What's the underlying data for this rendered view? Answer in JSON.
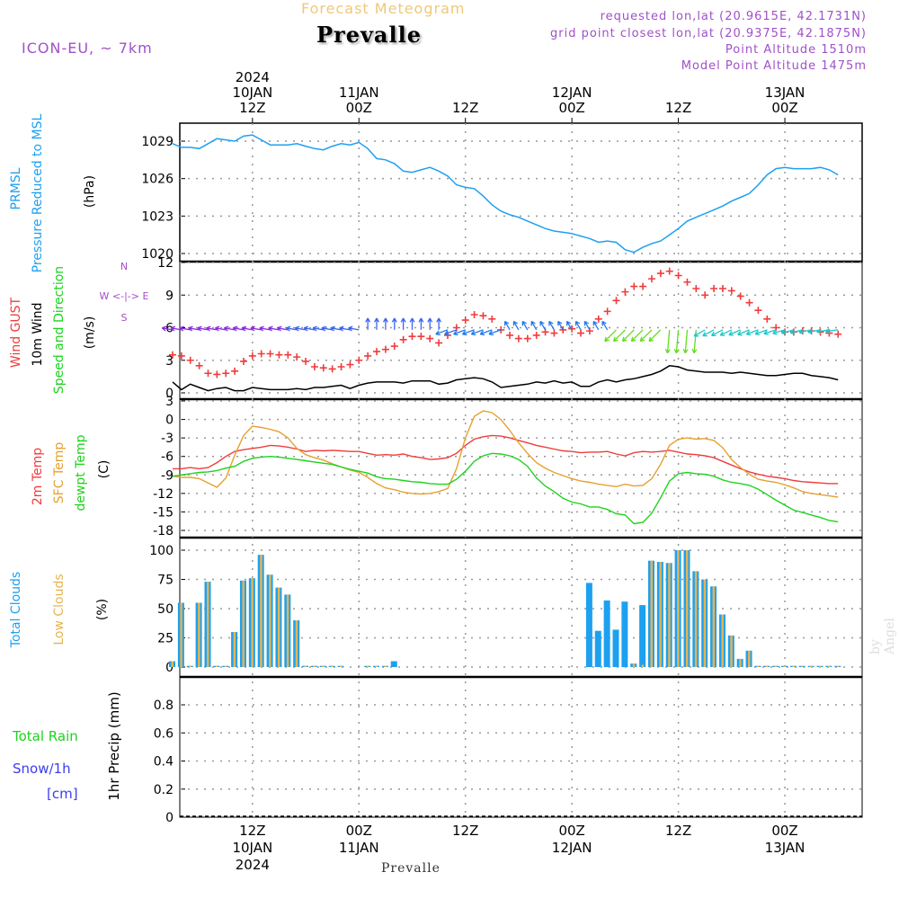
{
  "header": {
    "chart_kind": "Forecast Meteogram",
    "station": "Prevalle",
    "model": "ICON-EU, ~ 7km",
    "requested": "requested lon,lat (20.9615E, 42.1731N)",
    "grid_point": "grid point closest lon,lat (20.9375E, 42.1875N)",
    "point_alt": "Point Altitude 1510m",
    "model_alt": "Model Point Altitude 1475m",
    "credit": "by Angel",
    "footer": "Prevalle"
  },
  "colors": {
    "pressure": "#1ea0f0",
    "gust": "#f03c3c",
    "wind": "#000000",
    "t2m": "#f03c3c",
    "sfc": "#e6a030",
    "dewpt": "#1ed21e",
    "total_clouds": "#1ea0f0",
    "low_clouds": "#e6b450",
    "purple": "#a050c8",
    "snow": "#3c3cf0"
  },
  "chart_data": [
    {
      "type": "line",
      "panel": "pressure",
      "title": "PRMSL Pressure Reduced to MSL",
      "label1": "PRMSL",
      "label2": "Pressure Reduced to MSL",
      "ylabel": "(hPa)",
      "yticks": [
        "1020",
        "1023",
        "1026",
        "1029"
      ],
      "ylim": [
        1020,
        1030
      ],
      "x_hours": [
        0,
        1,
        2,
        3,
        4,
        5,
        6,
        7,
        8,
        9,
        10,
        11,
        12,
        13,
        14,
        15,
        16,
        17,
        18,
        19,
        20,
        21,
        22,
        23,
        24,
        25,
        26,
        27,
        28,
        29,
        30,
        31,
        32,
        33,
        34,
        35,
        36,
        37,
        38,
        39,
        40,
        41,
        42,
        43,
        44,
        45,
        46,
        47,
        48,
        49,
        50,
        51,
        52,
        53,
        54,
        55,
        56,
        57,
        58,
        59,
        60,
        61,
        62,
        63,
        64,
        65,
        66,
        67,
        68,
        69,
        70,
        71,
        72,
        73,
        74,
        75
      ],
      "values": [
        1028.8,
        1028.5,
        1028.5,
        1028.4,
        1028.8,
        1029.2,
        1029.1,
        1029.0,
        1029.4,
        1029.5,
        1029.1,
        1028.7,
        1028.7,
        1028.7,
        1028.8,
        1028.6,
        1028.4,
        1028.3,
        1028.6,
        1028.8,
        1028.7,
        1028.9,
        1028.4,
        1027.6,
        1027.5,
        1027.2,
        1026.6,
        1026.5,
        1026.7,
        1026.9,
        1026.6,
        1026.2,
        1025.5,
        1025.3,
        1025.2,
        1024.6,
        1023.9,
        1023.4,
        1023.1,
        1022.9,
        1022.6,
        1022.3,
        1022.0,
        1021.8,
        1021.7,
        1021.6,
        1021.4,
        1021.2,
        1020.9,
        1021.0,
        1020.9,
        1020.3,
        1020.1,
        1020.5,
        1020.8,
        1021.0,
        1021.5,
        1022.0,
        1022.6,
        1022.9,
        1023.2,
        1023.5,
        1023.8,
        1024.2,
        1024.5,
        1024.8,
        1025.5,
        1026.3,
        1026.8,
        1026.9,
        1026.8,
        1026.8,
        1026.8,
        1026.9,
        1026.7,
        1026.3
      ]
    },
    {
      "type": "line",
      "panel": "wind",
      "label_gust": "Wind GUST",
      "label_wind": "10m Wind",
      "label_dir": "Speed and Direction",
      "ylabel": "(m/s)",
      "compass": "W <-|-> E",
      "compass_n": "N",
      "compass_s": "S",
      "yticks": [
        "0",
        "3",
        "6",
        "9",
        "12"
      ],
      "ylim": [
        0,
        12
      ],
      "x_hours": [
        0,
        1,
        2,
        3,
        4,
        5,
        6,
        7,
        8,
        9,
        10,
        11,
        12,
        13,
        14,
        15,
        16,
        17,
        18,
        19,
        20,
        21,
        22,
        23,
        24,
        25,
        26,
        27,
        28,
        29,
        30,
        31,
        32,
        33,
        34,
        35,
        36,
        37,
        38,
        39,
        40,
        41,
        42,
        43,
        44,
        45,
        46,
        47,
        48,
        49,
        50,
        51,
        52,
        53,
        54,
        55,
        56,
        57,
        58,
        59,
        60,
        61,
        62,
        63,
        64,
        65,
        66,
        67,
        68,
        69,
        70,
        71,
        72,
        73,
        74,
        75
      ],
      "gust": [
        3.5,
        3.4,
        3.0,
        2.5,
        1.8,
        1.7,
        1.8,
        2.0,
        2.9,
        3.4,
        3.6,
        3.6,
        3.5,
        3.5,
        3.3,
        2.9,
        2.4,
        2.3,
        2.2,
        2.4,
        2.6,
        3.0,
        3.4,
        3.8,
        4.0,
        4.3,
        4.9,
        5.2,
        5.2,
        5.0,
        4.6,
        5.3,
        6.0,
        6.7,
        7.2,
        7.1,
        6.8,
        5.8,
        5.3,
        5.0,
        5.0,
        5.3,
        5.6,
        5.5,
        5.8,
        5.9,
        5.5,
        5.7,
        6.8,
        7.5,
        8.5,
        9.3,
        9.8,
        9.8,
        10.5,
        11.0,
        11.2,
        10.8,
        10.2,
        9.6,
        9.0,
        9.6,
        9.6,
        9.4,
        8.9,
        8.3,
        7.6,
        6.8,
        6.0,
        5.6,
        5.6,
        5.7,
        5.7,
        5.6,
        5.5,
        5.4
      ],
      "wind": [
        1.0,
        0.3,
        0.8,
        0.5,
        0.2,
        0.4,
        0.5,
        0.2,
        0.2,
        0.5,
        0.4,
        0.3,
        0.3,
        0.3,
        0.4,
        0.3,
        0.5,
        0.5,
        0.6,
        0.7,
        0.4,
        0.7,
        0.9,
        1.0,
        1.0,
        1.0,
        0.9,
        1.1,
        1.1,
        1.1,
        0.8,
        0.9,
        1.2,
        1.3,
        1.4,
        1.3,
        1.0,
        0.5,
        0.6,
        0.7,
        0.8,
        1.0,
        0.9,
        1.1,
        0.9,
        1.0,
        0.6,
        0.6,
        1.0,
        1.2,
        1.0,
        1.2,
        1.3,
        1.5,
        1.7,
        2.0,
        2.5,
        2.4,
        2.1,
        2.0,
        1.9,
        1.9,
        1.9,
        1.8,
        1.9,
        1.8,
        1.7,
        1.6,
        1.6,
        1.7,
        1.8,
        1.8,
        1.6,
        1.5,
        1.4,
        1.2
      ]
    },
    {
      "type": "line",
      "panel": "temperature",
      "label_t2m": "2m Temp",
      "label_sfc": "SFC Temp",
      "label_dew": "dewpt Temp",
      "ylabel": "(C)",
      "yticks": [
        "-18",
        "-15",
        "-12",
        "-9",
        "-6",
        "-3",
        "0",
        "3"
      ],
      "ylim": [
        -18,
        3
      ],
      "x_hours": [
        0,
        1,
        2,
        3,
        4,
        5,
        6,
        7,
        8,
        9,
        10,
        11,
        12,
        13,
        14,
        15,
        16,
        17,
        18,
        19,
        20,
        21,
        22,
        23,
        24,
        25,
        26,
        27,
        28,
        29,
        30,
        31,
        32,
        33,
        34,
        35,
        36,
        37,
        38,
        39,
        40,
        41,
        42,
        43,
        44,
        45,
        46,
        47,
        48,
        49,
        50,
        51,
        52,
        53,
        54,
        55,
        56,
        57,
        58,
        59,
        60,
        61,
        62,
        63,
        64,
        65,
        66,
        67,
        68,
        69,
        70,
        71,
        72,
        73,
        74,
        75
      ],
      "t2m": [
        -8.0,
        -8.0,
        -7.8,
        -8.0,
        -7.8,
        -7.0,
        -6.0,
        -5.2,
        -4.9,
        -4.7,
        -4.5,
        -4.2,
        -4.3,
        -4.5,
        -4.8,
        -5.2,
        -5.0,
        -5.1,
        -5.0,
        -5.1,
        -5.2,
        -5.2,
        -5.5,
        -5.8,
        -5.7,
        -5.8,
        -5.6,
        -6.0,
        -6.2,
        -6.5,
        -6.4,
        -6.2,
        -5.5,
        -4.2,
        -3.2,
        -2.8,
        -2.6,
        -2.7,
        -3.0,
        -3.4,
        -3.8,
        -4.2,
        -4.5,
        -4.8,
        -5.1,
        -5.2,
        -5.4,
        -5.3,
        -5.3,
        -5.2,
        -5.6,
        -5.9,
        -5.4,
        -5.2,
        -5.3,
        -5.2,
        -5.0,
        -5.3,
        -5.6,
        -5.7,
        -5.9,
        -6.2,
        -6.8,
        -7.4,
        -8.0,
        -8.5,
        -8.9,
        -9.2,
        -9.4,
        -9.6,
        -9.9,
        -10.1,
        -10.2,
        -10.3,
        -10.4,
        -10.4
      ],
      "sfc": [
        -9.2,
        -9.4,
        -9.4,
        -9.6,
        -10.3,
        -11.0,
        -9.5,
        -5.8,
        -2.6,
        -1.1,
        -1.3,
        -1.6,
        -2.0,
        -3.0,
        -4.7,
        -5.7,
        -6.2,
        -6.6,
        -7.2,
        -7.7,
        -8.2,
        -8.6,
        -9.4,
        -10.4,
        -11.1,
        -11.4,
        -11.8,
        -12.0,
        -12.1,
        -12.0,
        -11.7,
        -11.2,
        -8.0,
        -3.0,
        0.5,
        1.4,
        1.1,
        0.0,
        -1.8,
        -3.8,
        -5.5,
        -7.0,
        -7.9,
        -8.6,
        -9.1,
        -9.6,
        -10.0,
        -10.2,
        -10.5,
        -10.7,
        -10.9,
        -10.5,
        -10.8,
        -10.7,
        -9.6,
        -7.3,
        -4.2,
        -3.2,
        -3.0,
        -3.2,
        -3.1,
        -3.4,
        -4.6,
        -6.5,
        -7.8,
        -8.9,
        -9.7,
        -10.0,
        -10.2,
        -10.6,
        -11.1,
        -11.7,
        -12.0,
        -12.2,
        -12.4,
        -12.6
      ],
      "dewpt": [
        -9.2,
        -9.0,
        -8.8,
        -8.6,
        -8.5,
        -8.3,
        -7.9,
        -7.6,
        -6.8,
        -6.3,
        -6.1,
        -6.0,
        -6.1,
        -6.3,
        -6.5,
        -6.7,
        -6.9,
        -7.1,
        -7.3,
        -7.7,
        -8.1,
        -8.4,
        -8.7,
        -9.3,
        -9.6,
        -9.7,
        -9.9,
        -10.1,
        -10.2,
        -10.4,
        -10.5,
        -10.5,
        -9.7,
        -8.4,
        -6.8,
        -5.9,
        -5.5,
        -5.6,
        -5.9,
        -6.5,
        -7.6,
        -9.5,
        -10.8,
        -11.7,
        -12.8,
        -13.4,
        -13.7,
        -14.2,
        -14.2,
        -14.6,
        -15.3,
        -15.5,
        -16.9,
        -16.7,
        -15.2,
        -12.7,
        -10.0,
        -8.8,
        -8.6,
        -8.8,
        -8.9,
        -9.2,
        -9.8,
        -10.2,
        -10.4,
        -10.7,
        -11.3,
        -12.2,
        -13.1,
        -13.9,
        -14.7,
        -15.1,
        -15.5,
        -15.9,
        -16.4,
        -16.6
      ]
    },
    {
      "type": "bar",
      "panel": "clouds",
      "label_total": "Total Clouds",
      "label_low": "Low Clouds",
      "ylabel": "(%)",
      "yticks": [
        "0",
        "25",
        "50",
        "75",
        "100"
      ],
      "ylim": [
        0,
        100
      ],
      "x_hours": [
        0,
        1,
        2,
        3,
        4,
        5,
        6,
        7,
        8,
        9,
        10,
        11,
        12,
        13,
        14,
        15,
        16,
        17,
        18,
        19,
        20,
        21,
        22,
        23,
        24,
        25,
        26,
        27,
        28,
        29,
        30,
        31,
        32,
        33,
        34,
        35,
        36,
        37,
        38,
        39,
        40,
        41,
        42,
        43,
        44,
        45,
        46,
        47,
        48,
        49,
        50,
        51,
        52,
        53,
        54,
        55,
        56,
        57,
        58,
        59,
        60,
        61,
        62,
        63,
        64,
        65,
        66,
        67,
        68,
        69,
        70,
        71,
        72,
        73,
        74,
        75
      ],
      "total": [
        5,
        55,
        1,
        55,
        73,
        1,
        1,
        30,
        74,
        76,
        96,
        79,
        68,
        62,
        40,
        1,
        1,
        1,
        1,
        1,
        0,
        0,
        1,
        1,
        1,
        5,
        0,
        0,
        0,
        0,
        0,
        0,
        0,
        0,
        0,
        0,
        0,
        0,
        0,
        0,
        0,
        0,
        0,
        0,
        0,
        0,
        0,
        72,
        31,
        57,
        32,
        56,
        3,
        53,
        91,
        90,
        89,
        100,
        100,
        82,
        75,
        69,
        45,
        27,
        7,
        14,
        1,
        1,
        1,
        1,
        1,
        1,
        1,
        1,
        1,
        1
      ],
      "low": [
        5,
        55,
        1,
        55,
        73,
        1,
        1,
        30,
        74,
        76,
        96,
        79,
        68,
        62,
        40,
        1,
        1,
        1,
        1,
        1,
        0,
        0,
        1,
        1,
        1,
        0,
        0,
        0,
        0,
        0,
        0,
        0,
        0,
        0,
        0,
        0,
        0,
        0,
        0,
        0,
        0,
        0,
        0,
        0,
        0,
        0,
        0,
        0,
        0,
        0,
        0,
        0,
        3,
        2,
        91,
        90,
        89,
        100,
        100,
        82,
        75,
        69,
        45,
        27,
        7,
        14,
        1,
        1,
        1,
        1,
        1,
        1,
        1,
        1,
        1,
        1
      ]
    },
    {
      "type": "bar",
      "panel": "precip",
      "label_rain": "Total  Rain",
      "label_snow": "Snow/1h",
      "label_cm": "[cm]",
      "ylabel": "1hr Precip (mm)",
      "yticks": [
        "0",
        "0.2",
        "0.4",
        "0.6",
        "0.8"
      ],
      "ylim": [
        0,
        1.0
      ],
      "values": [
        0,
        0,
        0,
        0,
        0,
        0,
        0,
        0,
        0,
        0,
        0,
        0,
        0,
        0,
        0,
        0,
        0,
        0,
        0,
        0,
        0,
        0,
        0,
        0,
        0,
        0,
        0,
        0,
        0,
        0,
        0,
        0,
        0,
        0,
        0,
        0,
        0,
        0,
        0,
        0,
        0,
        0,
        0,
        0,
        0,
        0,
        0,
        0,
        0,
        0,
        0,
        0,
        0,
        0,
        0,
        0,
        0,
        0,
        0,
        0,
        0,
        0,
        0,
        0,
        0,
        0,
        0,
        0,
        0,
        0,
        0,
        0,
        0,
        0,
        0,
        0
      ]
    }
  ],
  "time_axis": {
    "top": [
      {
        "hour": 9,
        "lines": [
          "2024",
          "10JAN",
          "12Z"
        ]
      },
      {
        "hour": 21,
        "lines": [
          "",
          "11JAN",
          "00Z"
        ]
      },
      {
        "hour": 33,
        "lines": [
          "",
          "",
          "12Z"
        ]
      },
      {
        "hour": 45,
        "lines": [
          "",
          "12JAN",
          "00Z"
        ]
      },
      {
        "hour": 57,
        "lines": [
          "",
          "",
          "12Z"
        ]
      },
      {
        "hour": 69,
        "lines": [
          "",
          "13JAN",
          "00Z"
        ]
      }
    ],
    "bottom": [
      {
        "hour": 9,
        "lines": [
          "12Z",
          "10JAN",
          "2024"
        ]
      },
      {
        "hour": 21,
        "lines": [
          "00Z",
          "11JAN",
          ""
        ]
      },
      {
        "hour": 33,
        "lines": [
          "12Z",
          "",
          ""
        ]
      },
      {
        "hour": 45,
        "lines": [
          "00Z",
          "12JAN",
          ""
        ]
      },
      {
        "hour": 57,
        "lines": [
          "12Z",
          "",
          ""
        ]
      },
      {
        "hour": 69,
        "lines": [
          "00Z",
          "13JAN",
          ""
        ]
      }
    ]
  }
}
